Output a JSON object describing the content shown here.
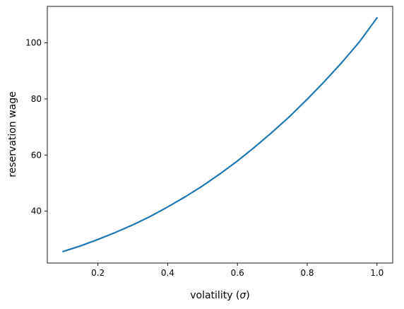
{
  "chart_data": {
    "type": "line",
    "title": "",
    "xlabel_prefix": "volatility (",
    "xlabel_symbol": "σ",
    "xlabel_suffix": ")",
    "ylabel": "reservation wage",
    "xlim": [
      0.055,
      1.045
    ],
    "ylim": [
      21.5,
      113.0
    ],
    "grid": false,
    "legend": "none",
    "xticks": [
      0.2,
      0.4,
      0.6,
      0.8,
      1.0
    ],
    "xtick_labels": [
      "0.2",
      "0.4",
      "0.6",
      "0.8",
      "1.0"
    ],
    "yticks": [
      40,
      60,
      80,
      100
    ],
    "ytick_labels": [
      "40",
      "60",
      "80",
      "100"
    ],
    "series": [
      {
        "color": "#1f77b4",
        "x": [
          0.1,
          0.15,
          0.2,
          0.25,
          0.3,
          0.35,
          0.4,
          0.45,
          0.5,
          0.55,
          0.6,
          0.65,
          0.7,
          0.75,
          0.8,
          0.85,
          0.9,
          0.95,
          1.0
        ],
        "y": [
          25.6,
          27.6,
          29.9,
          32.4,
          35.1,
          38.1,
          41.5,
          45.1,
          49.0,
          53.3,
          57.9,
          62.9,
          68.2,
          73.8,
          79.9,
          86.3,
          93.1,
          100.4,
          108.9
        ]
      }
    ]
  }
}
